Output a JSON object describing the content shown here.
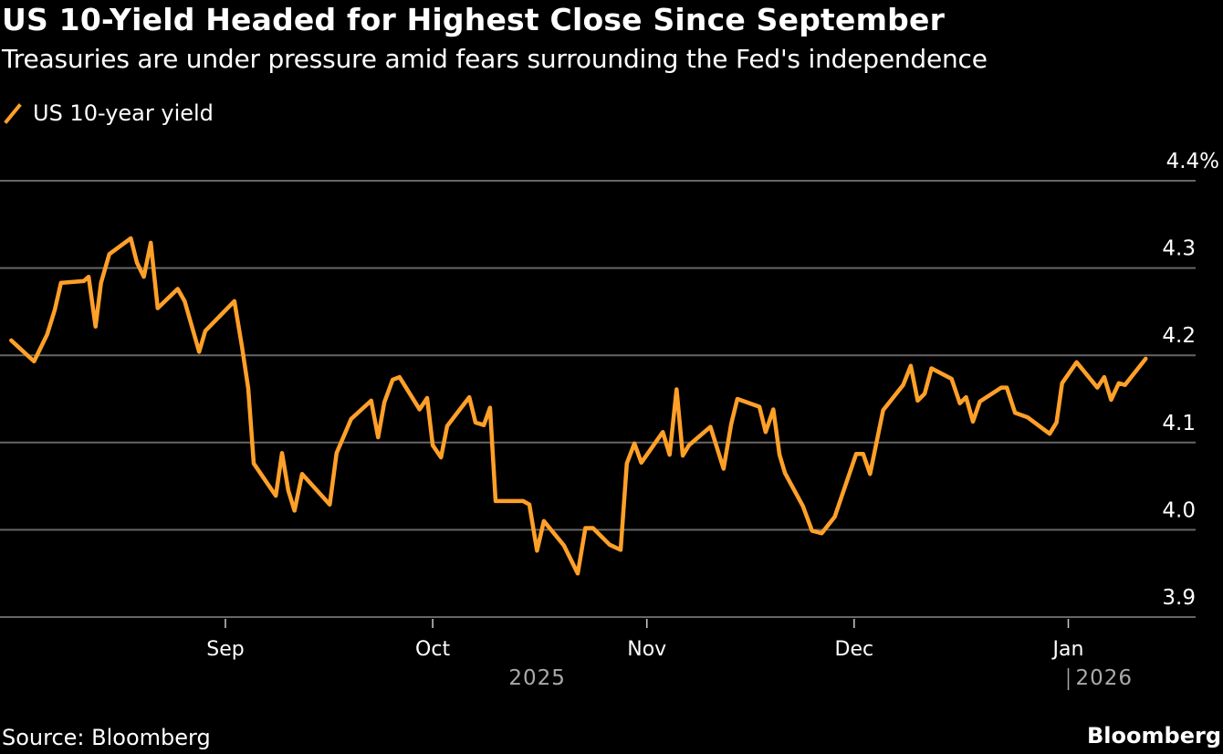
{
  "header": {
    "title": "US 10-Yield Headed for Highest Close Since September",
    "subtitle": "Treasuries are under pressure amid fears surrounding the Fed's independence"
  },
  "footer": {
    "source": "Source: Bloomberg",
    "brand": "Bloomberg"
  },
  "colors": {
    "background": "#000000",
    "line": "#FFA028",
    "grid": "#666666",
    "text": "#FFFFFF",
    "year_text": "#AAAAAA"
  },
  "chart_data": {
    "type": "line",
    "title": "US 10-Yield Headed for Highest Close Since September",
    "subtitle": "Treasuries are under pressure amid fears surrounding the Fed's independence",
    "xlabel": "",
    "ylabel": "",
    "x_unit": "days since 2025-08-01",
    "xlim": [
      0,
      166
    ],
    "ylim": [
      3.9,
      4.4
    ],
    "y_ticks": [
      {
        "value": 4.4,
        "label": "4.4%"
      },
      {
        "value": 4.3,
        "label": "4.3"
      },
      {
        "value": 4.2,
        "label": "4.2"
      },
      {
        "value": 4.1,
        "label": "4.1"
      },
      {
        "value": 4.0,
        "label": "4.0"
      },
      {
        "value": 3.9,
        "label": "3.9"
      }
    ],
    "x_ticks": [
      {
        "day": 31,
        "label": "Sep"
      },
      {
        "day": 61,
        "label": "Oct"
      },
      {
        "day": 92,
        "label": "Nov"
      },
      {
        "day": 122,
        "label": "Dec"
      },
      {
        "day": 153,
        "label": "Jan"
      }
    ],
    "year_labels": [
      {
        "day": 76,
        "label": "2025",
        "divider": false
      },
      {
        "day": 153,
        "label": "2026",
        "divider": true
      }
    ],
    "grid": true,
    "legend": {
      "position": "top-left",
      "entries": [
        "US 10-year yield"
      ]
    },
    "series": [
      {
        "name": "US 10-year yield",
        "x": [
          0.0,
          3.3,
          5.2,
          6.3,
          7.2,
          10.5,
          11.2,
          12.2,
          13.0,
          14.2,
          17.3,
          18.2,
          19.2,
          20.2,
          21.2,
          24.1,
          25.1,
          27.2,
          28.1,
          32.3,
          33.4,
          34.3,
          35.1,
          38.3,
          39.2,
          40.1,
          41.0,
          42.1,
          46.1,
          47.1,
          49.2,
          52.1,
          53.1,
          54.0,
          55.2,
          56.2,
          59.1,
          60.2,
          61.0,
          62.2,
          63.1,
          66.3,
          67.2,
          68.4,
          69.3,
          70.1,
          74.1,
          75.0,
          76.1,
          77.1,
          80.0,
          82.0,
          83.1,
          84.2,
          86.6,
          88.2,
          89.1,
          90.2,
          91.2,
          94.3,
          95.3,
          96.3,
          97.2,
          98.1,
          101.2,
          103.1,
          104.2,
          105.1,
          108.3,
          109.2,
          110.3,
          111.2,
          112.0,
          114.6,
          115.9,
          117.3,
          119.2,
          122.3,
          123.3,
          124.3,
          126.2,
          129.1,
          130.2,
          131.2,
          132.2,
          133.2,
          136.1,
          137.3,
          138.2,
          139.2,
          140.2,
          143.3,
          144.1,
          145.3,
          147.1,
          150.3,
          151.3,
          152.1,
          154.2,
          157.2,
          158.2,
          159.2,
          160.3,
          161.2,
          164.2
        ],
        "values": [
          4.217,
          4.193,
          4.224,
          4.252,
          4.283,
          4.285,
          4.29,
          4.233,
          4.283,
          4.316,
          4.334,
          4.306,
          4.29,
          4.329,
          4.254,
          4.276,
          4.262,
          4.204,
          4.228,
          4.262,
          4.21,
          4.162,
          4.076,
          4.039,
          4.088,
          4.045,
          4.022,
          4.064,
          4.029,
          4.088,
          4.127,
          4.148,
          4.106,
          4.146,
          4.172,
          4.175,
          4.138,
          4.151,
          4.097,
          4.083,
          4.119,
          4.152,
          4.123,
          4.12,
          4.14,
          4.033,
          4.033,
          4.029,
          3.976,
          4.01,
          3.982,
          3.95,
          4.002,
          4.002,
          3.983,
          3.977,
          4.076,
          4.099,
          4.077,
          4.112,
          4.086,
          4.161,
          4.085,
          4.097,
          4.118,
          4.07,
          4.121,
          4.15,
          4.141,
          4.112,
          4.138,
          4.086,
          4.065,
          4.027,
          3.999,
          3.996,
          4.015,
          4.087,
          4.087,
          4.064,
          4.137,
          4.166,
          4.188,
          4.148,
          4.156,
          4.185,
          4.173,
          4.145,
          4.152,
          4.124,
          4.147,
          4.163,
          4.163,
          4.134,
          4.129,
          4.11,
          4.123,
          4.168,
          4.192,
          4.163,
          4.175,
          4.149,
          4.168,
          4.166,
          4.196
        ]
      }
    ]
  }
}
